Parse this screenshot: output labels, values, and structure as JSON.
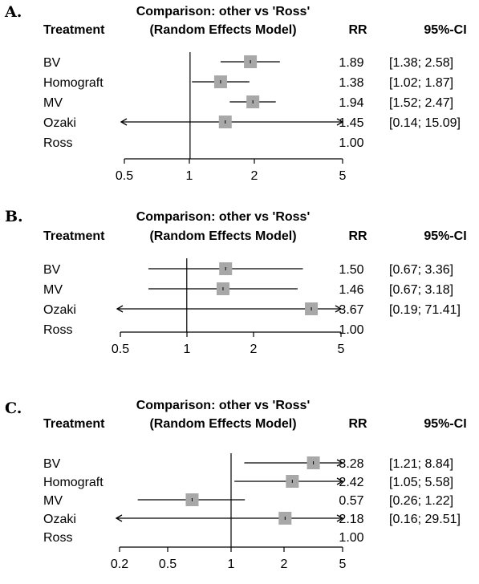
{
  "chart_data": [
    {
      "type": "forest",
      "panel": "A.",
      "title": "Comparison: other vs 'Ross'",
      "subtitle": "(Random Effects Model)",
      "col_treatment": "Treatment",
      "col_rr": "RR",
      "col_ci": "95%-CI",
      "scale": "log",
      "xlim": [
        0.5,
        5
      ],
      "ticks": [
        "0.5",
        "1",
        "2",
        "5"
      ],
      "reference": 1,
      "rows": [
        {
          "label": "BV",
          "rr": 1.89,
          "lo": 1.38,
          "hi": 2.58,
          "rr_text": "1.89",
          "ci_text": "[1.38;  2.58]"
        },
        {
          "label": "Homograft",
          "rr": 1.38,
          "lo": 1.02,
          "hi": 1.87,
          "rr_text": "1.38",
          "ci_text": "[1.02;  1.87]"
        },
        {
          "label": "MV",
          "rr": 1.94,
          "lo": 1.52,
          "hi": 2.47,
          "rr_text": "1.94",
          "ci_text": "[1.52;  2.47]"
        },
        {
          "label": "Ozaki",
          "rr": 1.45,
          "lo": 0.14,
          "hi": 15.09,
          "rr_text": "1.45",
          "ci_text": "[0.14; 15.09]"
        },
        {
          "label": "Ross",
          "rr": 1.0,
          "lo": null,
          "hi": null,
          "rr_text": "1.00",
          "ci_text": ""
        }
      ]
    },
    {
      "type": "forest",
      "panel": "B.",
      "title": "Comparison: other vs 'Ross'",
      "subtitle": "(Random Effects Model)",
      "col_treatment": "Treatment",
      "col_rr": "RR",
      "col_ci": "95%-CI",
      "scale": "log",
      "xlim": [
        0.5,
        5
      ],
      "ticks": [
        "0.5",
        "1",
        "2",
        "5"
      ],
      "reference": 1,
      "rows": [
        {
          "label": "BV",
          "rr": 1.5,
          "lo": 0.67,
          "hi": 3.36,
          "rr_text": "1.50",
          "ci_text": "[0.67;  3.36]"
        },
        {
          "label": "MV",
          "rr": 1.46,
          "lo": 0.67,
          "hi": 3.18,
          "rr_text": "1.46",
          "ci_text": "[0.67;  3.18]"
        },
        {
          "label": "Ozaki",
          "rr": 3.67,
          "lo": 0.19,
          "hi": 71.41,
          "rr_text": "3.67",
          "ci_text": "[0.19; 71.41]"
        },
        {
          "label": "Ross",
          "rr": 1.0,
          "lo": null,
          "hi": null,
          "rr_text": "1.00",
          "ci_text": ""
        }
      ]
    },
    {
      "type": "forest",
      "panel": "C.",
      "title": "Comparison: other vs 'Ross'",
      "subtitle": "(Random Effects Model)",
      "col_treatment": "Treatment",
      "col_rr": "RR",
      "col_ci": "95%-CI",
      "scale": "log",
      "xlim": [
        0.2,
        5
      ],
      "ticks": [
        "0.2",
        "0.5",
        "1",
        "2",
        "5"
      ],
      "reference": 1,
      "rows": [
        {
          "label": "BV",
          "rr": 3.28,
          "lo": 1.21,
          "hi": 8.84,
          "rr_text": "3.28",
          "ci_text": "[1.21;  8.84]"
        },
        {
          "label": "Homograft",
          "rr": 2.42,
          "lo": 1.05,
          "hi": 5.58,
          "rr_text": "2.42",
          "ci_text": "[1.05;  5.58]"
        },
        {
          "label": "MV",
          "rr": 0.57,
          "lo": 0.26,
          "hi": 1.22,
          "rr_text": "0.57",
          "ci_text": "[0.26;  1.22]"
        },
        {
          "label": "Ozaki",
          "rr": 2.18,
          "lo": 0.16,
          "hi": 29.51,
          "rr_text": "2.18",
          "ci_text": "[0.16; 29.51]"
        },
        {
          "label": "Ross",
          "rr": 1.0,
          "lo": null,
          "hi": null,
          "rr_text": "1.00",
          "ci_text": ""
        }
      ]
    }
  ]
}
